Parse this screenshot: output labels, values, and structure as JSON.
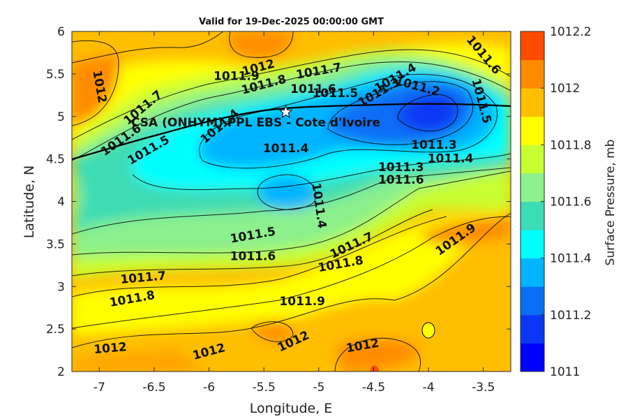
{
  "title": "Valid for 19-Dec-2025 00:00:00 GMT",
  "colors": {
    "levels": [
      "#0000ff",
      "#0a37f5",
      "#0a6ef5",
      "#00b4ff",
      "#00ffff",
      "#3cdcb4",
      "#8cf08c",
      "#c8ff32",
      "#ffff00",
      "#ffbe00",
      "#ff8c00",
      "#ff4b00",
      "#ff0000"
    ],
    "contour_line": "#000000",
    "coastline": "#000000"
  },
  "chart_data": {
    "type": "contour-map",
    "xlabel": "Longitude, E",
    "ylabel": "Latitude, N",
    "xlim": [
      -7.25,
      -3.25
    ],
    "ylim": [
      2,
      6
    ],
    "x_ticks": [
      -7,
      -6.5,
      -6,
      -5.5,
      -5,
      -4.5,
      -4,
      -3.5
    ],
    "y_ticks": [
      2,
      2.5,
      3,
      3.5,
      4,
      4.5,
      5,
      5.5,
      6
    ],
    "x_tick_labels": [
      "-7",
      "-6.5",
      "-6",
      "-5.5",
      "-5",
      "-4.5",
      "-4",
      "-3.5"
    ],
    "y_tick_labels": [
      "2",
      "2.5",
      "3",
      "3.5",
      "4",
      "4.5",
      "5",
      "5.5",
      "6"
    ],
    "colorbar": {
      "label": "Surface Pressure, mb",
      "range": [
        1011,
        1012.2
      ],
      "step": 0.1,
      "ticks": [
        1011,
        1011.2,
        1011.4,
        1011.6,
        1011.8,
        1012,
        1012.2
      ],
      "tick_labels": [
        "1011",
        "1011.2",
        "1011.4",
        "1011.6",
        "1011.8",
        "1012",
        "1012.2"
      ]
    },
    "station": {
      "name": "CSA (ONHYM) PPL EBS  - Cote d'Ivoire",
      "lon": -5.3,
      "lat": 5.05
    },
    "contour_labels": [
      {
        "text": "1012",
        "lon": -7.0,
        "lat": 5.35,
        "rot": 80
      },
      {
        "text": "1012",
        "lon": -5.55,
        "lat": 5.57,
        "rot": -15
      },
      {
        "text": "1011.9",
        "lon": -5.75,
        "lat": 5.47,
        "rot": 0
      },
      {
        "text": "1011.8",
        "lon": -5.5,
        "lat": 5.37,
        "rot": -15
      },
      {
        "text": "1011.7",
        "lon": -5.0,
        "lat": 5.53,
        "rot": -10
      },
      {
        "text": "1011.6",
        "lon": -5.05,
        "lat": 5.32,
        "rot": 0
      },
      {
        "text": "1011.5",
        "lon": -4.85,
        "lat": 5.27,
        "rot": 0
      },
      {
        "text": "1011.4",
        "lon": -4.3,
        "lat": 5.45,
        "rot": -30
      },
      {
        "text": "1011.3",
        "lon": -4.45,
        "lat": 5.28,
        "rot": -30
      },
      {
        "text": "1011.2",
        "lon": -4.1,
        "lat": 5.35,
        "rot": 15
      },
      {
        "text": "1011.6",
        "lon": -3.5,
        "lat": 5.72,
        "rot": 50
      },
      {
        "text": "1011.5",
        "lon": -3.52,
        "lat": 5.18,
        "rot": 75
      },
      {
        "text": "1011.7",
        "lon": -6.6,
        "lat": 5.1,
        "rot": -40
      },
      {
        "text": "1011.6",
        "lon": -6.8,
        "lat": 4.72,
        "rot": -35
      },
      {
        "text": "1011.5",
        "lon": -6.55,
        "lat": 4.6,
        "rot": -30
      },
      {
        "text": "1011.4",
        "lon": -5.9,
        "lat": 4.88,
        "rot": -40
      },
      {
        "text": "1011.4",
        "lon": -5.3,
        "lat": 4.62,
        "rot": 0
      },
      {
        "text": "1011.4",
        "lon": -5.0,
        "lat": 3.95,
        "rot": 82
      },
      {
        "text": "1011.3",
        "lon": -3.95,
        "lat": 4.66,
        "rot": 0
      },
      {
        "text": "1011.3",
        "lon": -4.25,
        "lat": 4.4,
        "rot": 0
      },
      {
        "text": "1011.4",
        "lon": -3.8,
        "lat": 4.5,
        "rot": 0
      },
      {
        "text": "1011.6",
        "lon": -4.25,
        "lat": 4.25,
        "rot": 0
      },
      {
        "text": "1011.5",
        "lon": -5.6,
        "lat": 3.6,
        "rot": -10
      },
      {
        "text": "1011.6",
        "lon": -5.6,
        "lat": 3.35,
        "rot": 0
      },
      {
        "text": "1011.7",
        "lon": -4.7,
        "lat": 3.48,
        "rot": -25
      },
      {
        "text": "1011.8",
        "lon": -4.8,
        "lat": 3.26,
        "rot": -10
      },
      {
        "text": "1011.7",
        "lon": -6.6,
        "lat": 3.1,
        "rot": -5
      },
      {
        "text": "1011.8",
        "lon": -6.7,
        "lat": 2.85,
        "rot": -10
      },
      {
        "text": "1011.9",
        "lon": -5.15,
        "lat": 2.82,
        "rot": 0
      },
      {
        "text": "1011.9",
        "lon": -3.75,
        "lat": 3.55,
        "rot": -35
      },
      {
        "text": "1012",
        "lon": -5.23,
        "lat": 2.35,
        "rot": -25
      },
      {
        "text": "1012",
        "lon": -6.0,
        "lat": 2.23,
        "rot": -15
      },
      {
        "text": "1012",
        "lon": -6.9,
        "lat": 2.27,
        "rot": -5
      },
      {
        "text": "1012",
        "lon": -4.6,
        "lat": 2.3,
        "rot": -10
      }
    ]
  }
}
